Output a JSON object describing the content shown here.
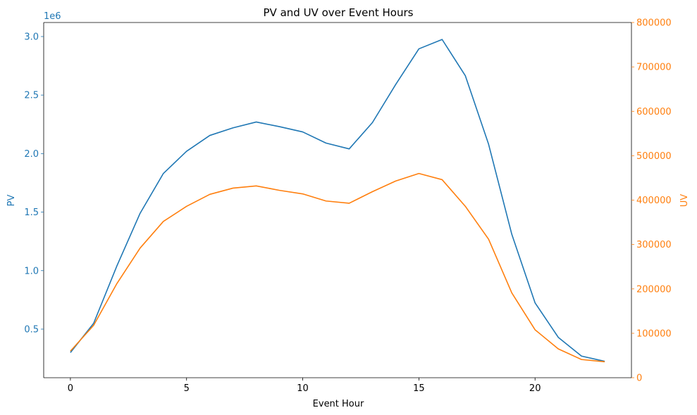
{
  "chart_data": {
    "type": "line",
    "title": "PV and UV over Event Hours",
    "xlabel": "Event Hour",
    "y_left_label": "PV",
    "y_right_label": "UV",
    "y_left_offset_text": "1e6",
    "x": [
      0,
      1,
      2,
      3,
      4,
      5,
      6,
      7,
      8,
      9,
      10,
      11,
      12,
      13,
      14,
      15,
      16,
      17,
      18,
      19,
      20,
      21,
      22,
      23
    ],
    "xlim": [
      -1.15,
      24.15
    ],
    "x_ticks": [
      0,
      5,
      10,
      15,
      20
    ],
    "x_tick_labels": [
      "0",
      "5",
      "10",
      "15",
      "20"
    ],
    "y_left_lim": [
      0.085,
      3.12
    ],
    "y_left_ticks": [
      0.5,
      1.0,
      1.5,
      2.0,
      2.5,
      3.0
    ],
    "y_left_tick_labels": [
      "0.5",
      "1.0",
      "1.5",
      "2.0",
      "2.5",
      "3.0"
    ],
    "y_right_lim": [
      0,
      800000
    ],
    "y_right_ticks": [
      0,
      100000,
      200000,
      300000,
      400000,
      500000,
      600000,
      700000,
      800000
    ],
    "y_right_tick_labels": [
      "0",
      "100000",
      "200000",
      "300000",
      "400000",
      "500000",
      "600000",
      "700000",
      "800000"
    ],
    "series": [
      {
        "name": "PV",
        "axis": "left",
        "color": "#1f77b4",
        "values": [
          0.3,
          0.55,
          1.04,
          1.49,
          1.83,
          2.02,
          2.155,
          2.22,
          2.27,
          2.23,
          2.185,
          2.09,
          2.04,
          2.265,
          2.59,
          2.895,
          2.975,
          2.665,
          2.08,
          1.31,
          0.725,
          0.43,
          0.27,
          0.225
        ]
      },
      {
        "name": "UV",
        "axis": "right",
        "color": "#ff7f0e",
        "values": [
          60000,
          118000,
          212000,
          292000,
          352000,
          386000,
          413000,
          427000,
          432000,
          422000,
          414000,
          398000,
          393000,
          419000,
          443000,
          460000,
          446000,
          386000,
          312000,
          191000,
          108000,
          65000,
          41000,
          36000
        ]
      }
    ]
  }
}
